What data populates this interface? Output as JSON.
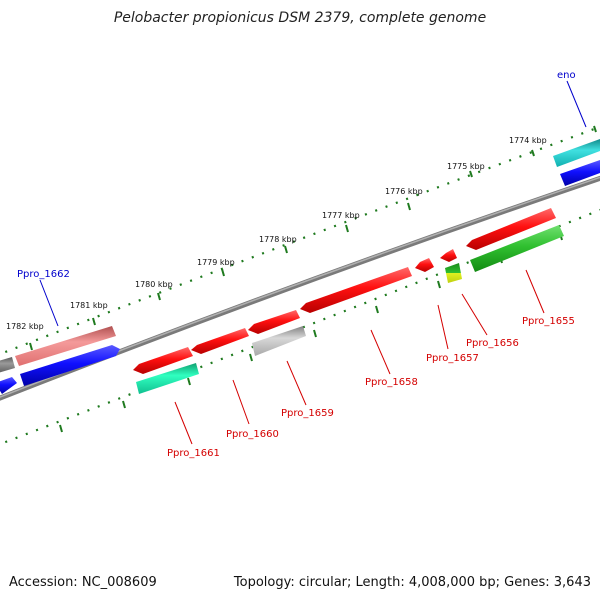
{
  "title": "Pelobacter propionicus DSM 2379, complete genome",
  "footer": {
    "accession": "Accession: NC_008609",
    "summary": "Topology: circular; Length: 4,008,000 bp; Genes: 3,643"
  },
  "colors": {
    "backbone": "#8a8a8a",
    "tick": "#1f7a1f",
    "label_red": "#d40000",
    "label_blue": "#0000cc"
  },
  "scale_ticks": [
    {
      "label": "1774 kbp"
    },
    {
      "label": "1775 kbp"
    },
    {
      "label": "1776 kbp"
    },
    {
      "label": "1777 kbp"
    },
    {
      "label": "1778 kbp"
    },
    {
      "label": "1779 kbp"
    },
    {
      "label": "1780 kbp"
    },
    {
      "label": "1781 kbp"
    },
    {
      "label": "1782 kbp"
    }
  ],
  "gene_labels": [
    {
      "name": "eno",
      "color": "blue"
    },
    {
      "name": "Ppro_1662",
      "color": "blue"
    },
    {
      "name": "Ppro_1655",
      "color": "red"
    },
    {
      "name": "Ppro_1656",
      "color": "red"
    },
    {
      "name": "Ppro_1657",
      "color": "red"
    },
    {
      "name": "Ppro_1658",
      "color": "red"
    },
    {
      "name": "Ppro_1659",
      "color": "red"
    },
    {
      "name": "Ppro_1660",
      "color": "red"
    },
    {
      "name": "Ppro_1661",
      "color": "red"
    }
  ]
}
